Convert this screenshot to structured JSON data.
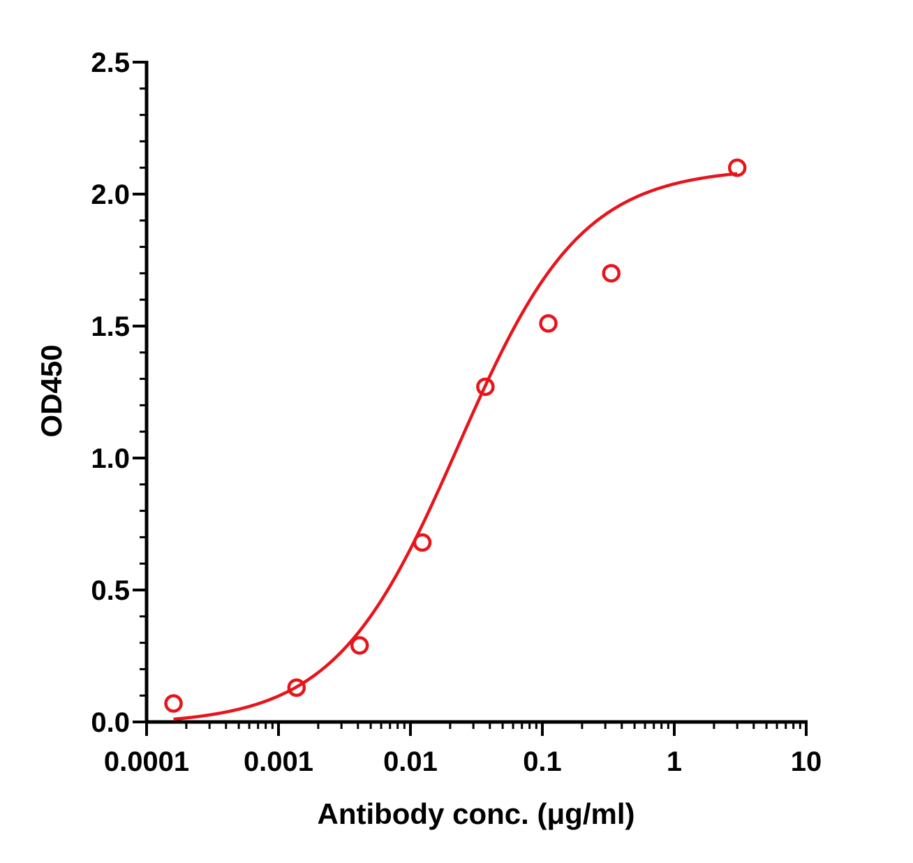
{
  "chart_data": {
    "type": "scatter",
    "title": "",
    "xlabel": "Antibody conc. (μg/ml)",
    "ylabel": "OD450",
    "xscale": "log",
    "xlim": [
      0.0001,
      10
    ],
    "ylim": [
      0,
      2.5
    ],
    "x_ticks": [
      {
        "value": 0.0001,
        "label": "0.0001"
      },
      {
        "value": 0.001,
        "label": "0.001"
      },
      {
        "value": 0.01,
        "label": "0.01"
      },
      {
        "value": 0.1,
        "label": "0.1"
      },
      {
        "value": 1,
        "label": "1"
      },
      {
        "value": 10,
        "label": "10"
      }
    ],
    "y_ticks": [
      {
        "value": 0,
        "label": "0.0"
      },
      {
        "value": 0.5,
        "label": "0.5"
      },
      {
        "value": 1.0,
        "label": "1.0"
      },
      {
        "value": 1.5,
        "label": "1.5"
      },
      {
        "value": 2.0,
        "label": "2.0"
      },
      {
        "value": 2.5,
        "label": "2.5"
      }
    ],
    "grid": false,
    "legend": "none",
    "color": "#e8141c",
    "series": [
      {
        "marker": "open-circle",
        "x": [
          0.00016,
          0.00137,
          0.00412,
          0.0123,
          0.037,
          0.111,
          0.333,
          3.0
        ],
        "y": [
          0.07,
          0.13,
          0.29,
          0.68,
          1.27,
          1.51,
          1.7,
          2.1
        ]
      }
    ],
    "fit": {
      "type": "4PL",
      "bottom": -0.01,
      "top": 2.1,
      "ec50": 0.023,
      "hill": 0.93,
      "x_range": [
        0.00016,
        3.0
      ]
    }
  }
}
